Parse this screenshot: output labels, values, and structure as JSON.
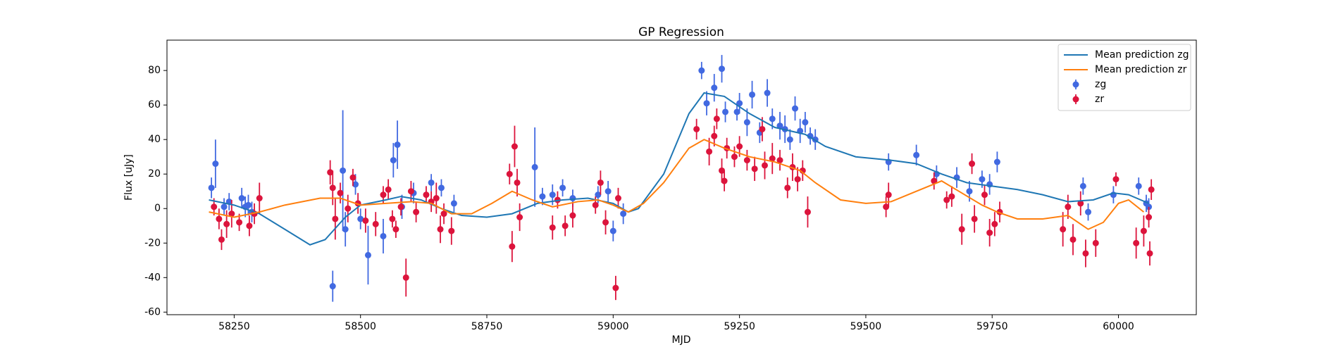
{
  "chart_data": {
    "type": "scatter",
    "title": "GP Regression",
    "x_label": "MJD",
    "y_label": "Flux [uJy]",
    "xlim": [
      58117,
      60154
    ],
    "ylim": [
      -61.5,
      97.6
    ],
    "xticks": [
      58250,
      58500,
      58750,
      59000,
      59250,
      59500,
      59750,
      60000
    ],
    "yticks": [
      -60,
      -40,
      -20,
      0,
      20,
      40,
      60,
      80
    ],
    "legend": "upper right",
    "series": [
      {
        "name": "Mean prediction zg",
        "type": "line",
        "color": "#1f77b4",
        "x": [
          58200,
          58250,
          58300,
          58350,
          58400,
          58430,
          58470,
          58500,
          58550,
          58580,
          58620,
          58660,
          58700,
          58750,
          58800,
          58850,
          58900,
          58950,
          59000,
          59030,
          59050,
          59100,
          59150,
          59180,
          59220,
          59270,
          59320,
          59380,
          59420,
          59480,
          59550,
          59600,
          59650,
          59700,
          59750,
          59800,
          59850,
          59900,
          59950,
          59990,
          60020,
          60060
        ],
        "values": [
          5,
          2,
          -3,
          -12,
          -21,
          -18,
          -5,
          2,
          5,
          7,
          5,
          0,
          -4,
          -5,
          -3,
          3,
          5,
          6,
          3,
          -2,
          0,
          20,
          55,
          67,
          65,
          55,
          47,
          43,
          36,
          30,
          28,
          26,
          20,
          15,
          13,
          11,
          8,
          4,
          5,
          9,
          8,
          3
        ]
      },
      {
        "name": "Mean prediction zr",
        "type": "line",
        "color": "#ff7f0e",
        "x": [
          58200,
          58250,
          58300,
          58350,
          58420,
          58460,
          58500,
          58550,
          58600,
          58640,
          58680,
          58720,
          58760,
          58800,
          58840,
          58880,
          58930,
          58970,
          59000,
          59030,
          59060,
          59100,
          59150,
          59180,
          59220,
          59270,
          59320,
          59370,
          59400,
          59450,
          59500,
          59550,
          59600,
          59650,
          59690,
          59730,
          59760,
          59800,
          59850,
          59900,
          59940,
          59970,
          60000,
          60020,
          60050
        ],
        "values": [
          -2,
          -5,
          -2,
          2,
          6,
          6,
          2,
          3,
          4,
          3,
          -3,
          -3,
          3,
          10,
          5,
          1,
          4,
          5,
          2,
          -2,
          3,
          15,
          35,
          40,
          35,
          30,
          27,
          22,
          15,
          5,
          3,
          4,
          10,
          16,
          9,
          2,
          -2,
          -6,
          -6,
          -4,
          -12,
          -8,
          3,
          5,
          -2
        ]
      },
      {
        "name": "zg",
        "type": "errorbar",
        "color": "#4169e1",
        "x": [
          58205,
          58213,
          58230,
          58240,
          58265,
          58272,
          58278,
          58285,
          58445,
          58465,
          58470,
          58490,
          58500,
          58515,
          58545,
          58565,
          58573,
          58582,
          58605,
          58640,
          58660,
          58685,
          58845,
          58860,
          58880,
          58900,
          58920,
          58970,
          58990,
          59000,
          59020,
          59175,
          59185,
          59200,
          59215,
          59222,
          59245,
          59250,
          59265,
          59275,
          59290,
          59305,
          59315,
          59330,
          59340,
          59350,
          59360,
          59370,
          59380,
          59390,
          59400,
          59545,
          59600,
          59640,
          59680,
          59705,
          59730,
          59745,
          59760,
          59930,
          59940,
          59990,
          60040,
          60055,
          60060
        ],
        "values": [
          12,
          26,
          1,
          4,
          6,
          1,
          2,
          -2,
          -45,
          22,
          -12,
          14,
          -6,
          -27,
          -16,
          28,
          37,
          1,
          9,
          15,
          12,
          3,
          24,
          7,
          8,
          12,
          6,
          8,
          10,
          -13,
          -3,
          80,
          61,
          70,
          81,
          56,
          56,
          61,
          50,
          66,
          44,
          67,
          52,
          48,
          46,
          40,
          58,
          45,
          50,
          42,
          40,
          27,
          31,
          20,
          18,
          10,
          17,
          14,
          27,
          13,
          -2,
          8,
          13,
          3,
          1
        ],
        "errors": [
          6,
          14,
          5,
          5,
          6,
          6,
          6,
          6,
          9,
          35,
          10,
          6,
          6,
          17,
          10,
          10,
          14,
          7,
          6,
          5,
          5,
          5,
          23,
          5,
          6,
          5,
          5,
          5,
          6,
          6,
          6,
          5,
          7,
          8,
          8,
          6,
          5,
          6,
          8,
          8,
          6,
          8,
          6,
          8,
          8,
          6,
          7,
          7,
          6,
          5,
          6,
          5,
          6,
          5,
          6,
          6,
          5,
          6,
          6,
          5,
          5,
          5,
          5,
          5,
          5
        ]
      },
      {
        "name": "zr",
        "type": "errorbar",
        "color": "#dc143c",
        "x": [
          58210,
          58220,
          58225,
          58235,
          58245,
          58260,
          58280,
          58290,
          58300,
          58440,
          58445,
          58450,
          58460,
          58475,
          58485,
          58495,
          58510,
          58530,
          58545,
          58555,
          58563,
          58570,
          58580,
          58590,
          58600,
          58610,
          58630,
          58640,
          58650,
          58658,
          58665,
          58680,
          58795,
          58800,
          58805,
          58810,
          58815,
          58880,
          58890,
          58905,
          58920,
          58965,
          58975,
          58985,
          59005,
          59010,
          59165,
          59190,
          59200,
          59205,
          59215,
          59220,
          59225,
          59240,
          59250,
          59265,
          59280,
          59295,
          59300,
          59315,
          59330,
          59345,
          59355,
          59365,
          59375,
          59385,
          59540,
          59545,
          59635,
          59660,
          59670,
          59690,
          59710,
          59715,
          59735,
          59745,
          59755,
          59765,
          59890,
          59900,
          59910,
          59925,
          59935,
          59955,
          59995,
          60035,
          60050,
          60060,
          60062,
          60065
        ],
        "values": [
          1,
          -6,
          -18,
          -9,
          -3,
          -8,
          -10,
          -3,
          6,
          21,
          12,
          -6,
          9,
          0,
          18,
          3,
          -7,
          -9,
          8,
          11,
          -6,
          -12,
          1,
          -40,
          10,
          -2,
          8,
          4,
          6,
          -12,
          -3,
          -13,
          20,
          -22,
          36,
          15,
          -5,
          -11,
          5,
          -10,
          -4,
          2,
          15,
          -8,
          -46,
          6,
          46,
          33,
          42,
          52,
          22,
          16,
          35,
          30,
          36,
          28,
          23,
          46,
          25,
          29,
          28,
          12,
          24,
          17,
          22,
          -2,
          1,
          8,
          16,
          5,
          7,
          -12,
          26,
          -6,
          8,
          -14,
          -9,
          -2,
          -12,
          1,
          -18,
          3,
          -26,
          -20,
          17,
          -20,
          -13,
          -5,
          -26,
          11
        ],
        "errors": [
          5,
          6,
          6,
          8,
          8,
          5,
          6,
          6,
          9,
          7,
          10,
          12,
          6,
          8,
          5,
          6,
          7,
          7,
          5,
          6,
          5,
          5,
          5,
          11,
          6,
          6,
          5,
          6,
          9,
          8,
          6,
          8,
          6,
          9,
          12,
          8,
          8,
          7,
          5,
          6,
          7,
          5,
          7,
          7,
          7,
          6,
          6,
          8,
          6,
          6,
          7,
          6,
          6,
          6,
          6,
          6,
          7,
          7,
          8,
          9,
          6,
          6,
          8,
          7,
          6,
          9,
          6,
          7,
          5,
          5,
          6,
          9,
          6,
          8,
          6,
          8,
          7,
          6,
          10,
          7,
          9,
          7,
          8,
          8,
          4,
          9,
          9,
          6,
          7,
          6
        ]
      }
    ]
  }
}
